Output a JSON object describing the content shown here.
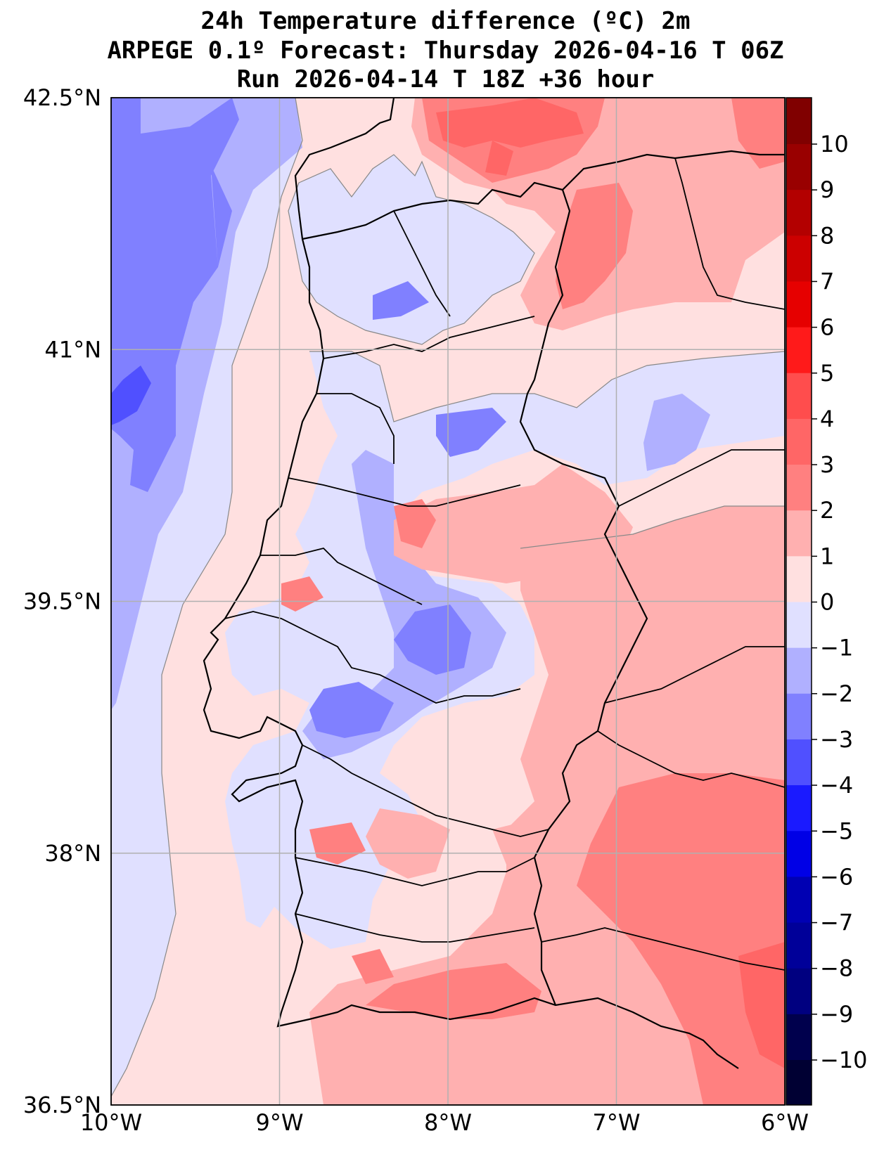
{
  "title": {
    "line1": "24h Temperature difference (ºC) 2m",
    "line2": "ARPEGE 0.1º Forecast: Thursday 2026-04-16 T 06Z",
    "line3": "Run 2026-04-14 T 18Z +36 hour"
  },
  "map": {
    "region": "Portugal",
    "lon_range": [
      -10,
      -6
    ],
    "lat_range": [
      36.5,
      42.5
    ],
    "x_ticks": [
      {
        "lon": -10,
        "label": "10°W"
      },
      {
        "lon": -9,
        "label": "9°W"
      },
      {
        "lon": -8,
        "label": "8°W"
      },
      {
        "lon": -7,
        "label": "7°W"
      },
      {
        "lon": -6,
        "label": "6°W"
      }
    ],
    "y_ticks": [
      {
        "lat": 42.5,
        "label": "42.5°N"
      },
      {
        "lat": 41,
        "label": "41°N"
      },
      {
        "lat": 39.5,
        "label": "39.5°N"
      },
      {
        "lat": 38,
        "label": "38°N"
      },
      {
        "lat": 36.5,
        "label": "36.5°N"
      }
    ],
    "grid": true
  },
  "colorbar": {
    "levels": [
      10,
      9,
      8,
      7,
      6,
      5,
      4,
      3,
      2,
      1,
      0,
      -1,
      -2,
      -3,
      -4,
      -5,
      -6,
      -7,
      -8,
      -9,
      -10
    ],
    "labels": [
      "10",
      "9",
      "8",
      "7",
      "6",
      "5",
      "4",
      "3",
      "2",
      "1",
      "0",
      "−1",
      "−2",
      "−3",
      "−4",
      "−5",
      "−6",
      "−7",
      "−8",
      "−9",
      "−10"
    ],
    "colors": [
      "#800000",
      "#990000",
      "#b30000",
      "#cc0000",
      "#e60000",
      "#ff1a1a",
      "#ff4d4d",
      "#ff6666",
      "#ff8080",
      "#ffb0b0",
      "#ffe0e0",
      "#e0e0ff",
      "#b0b0ff",
      "#8080ff",
      "#5050ff",
      "#1a1aff",
      "#0000e6",
      "#0000b3",
      "#000099",
      "#000080",
      "#00004d",
      "#000033"
    ]
  }
}
